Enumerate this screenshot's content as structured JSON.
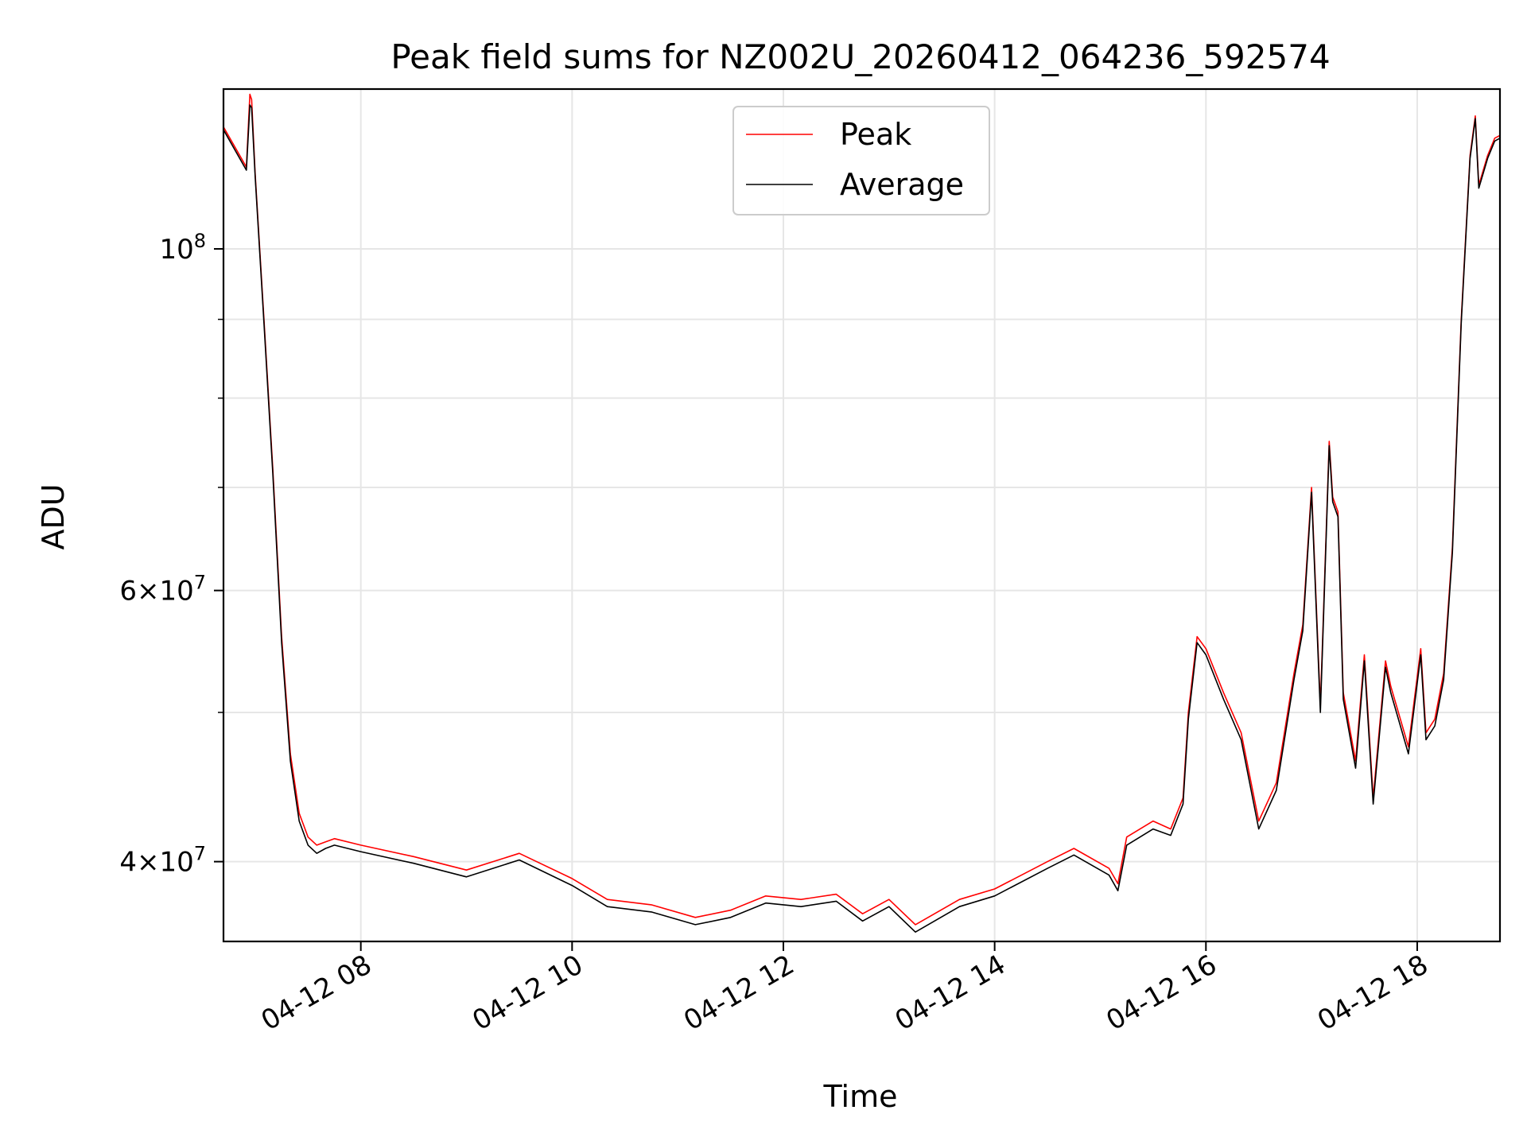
{
  "chart_data": {
    "type": "line",
    "title": "Peak field sums for NZ002U_20260412_064236_592574",
    "xlabel": "Time",
    "ylabel": "ADU",
    "yscale": "log",
    "ylim": [
      35500000,
      127000000
    ],
    "xlim": [
      "2026-04-12 06:42",
      "2026-04-12 18:47"
    ],
    "grid": true,
    "legend_position": "top-center",
    "x_ticks": [
      {
        "value": "2026-04-12 08:00",
        "label": "04-12 08"
      },
      {
        "value": "2026-04-12 10:00",
        "label": "04-12 10"
      },
      {
        "value": "2026-04-12 12:00",
        "label": "04-12 12"
      },
      {
        "value": "2026-04-12 14:00",
        "label": "04-12 14"
      },
      {
        "value": "2026-04-12 16:00",
        "label": "04-12 16"
      },
      {
        "value": "2026-04-12 18:00",
        "label": "04-12 18"
      }
    ],
    "y_major_ticks": [
      {
        "value": 40000000,
        "mantissa": "4",
        "exp": "7"
      },
      {
        "value": 60000000,
        "mantissa": "6",
        "exp": "7"
      },
      {
        "value": 100000000,
        "mantissa": "",
        "exp": "8"
      }
    ],
    "y_minor_ticks": [
      50000000,
      70000000,
      80000000,
      90000000
    ],
    "x": [
      "2026-04-12 06:42",
      "2026-04-12 06:55",
      "2026-04-12 06:57",
      "2026-04-12 06:58",
      "2026-04-12 07:00",
      "2026-04-12 07:05",
      "2026-04-12 07:10",
      "2026-04-12 07:15",
      "2026-04-12 07:20",
      "2026-04-12 07:25",
      "2026-04-12 07:30",
      "2026-04-12 07:35",
      "2026-04-12 07:40",
      "2026-04-12 07:45",
      "2026-04-12 08:00",
      "2026-04-12 08:30",
      "2026-04-12 09:00",
      "2026-04-12 09:30",
      "2026-04-12 10:00",
      "2026-04-12 10:20",
      "2026-04-12 10:45",
      "2026-04-12 11:10",
      "2026-04-12 11:30",
      "2026-04-12 11:50",
      "2026-04-12 12:10",
      "2026-04-12 12:30",
      "2026-04-12 12:45",
      "2026-04-12 13:00",
      "2026-04-12 13:15",
      "2026-04-12 13:40",
      "2026-04-12 14:00",
      "2026-04-12 14:30",
      "2026-04-12 14:45",
      "2026-04-12 15:05",
      "2026-04-12 15:10",
      "2026-04-12 15:15",
      "2026-04-12 15:30",
      "2026-04-12 15:40",
      "2026-04-12 15:47",
      "2026-04-12 15:50",
      "2026-04-12 15:55",
      "2026-04-12 16:00",
      "2026-04-12 16:10",
      "2026-04-12 16:20",
      "2026-04-12 16:30",
      "2026-04-12 16:40",
      "2026-04-12 16:50",
      "2026-04-12 16:55",
      "2026-04-12 17:00",
      "2026-04-12 17:05",
      "2026-04-12 17:10",
      "2026-04-12 17:12",
      "2026-04-12 17:15",
      "2026-04-12 17:18",
      "2026-04-12 17:25",
      "2026-04-12 17:30",
      "2026-04-12 17:35",
      "2026-04-12 17:42",
      "2026-04-12 17:45",
      "2026-04-12 17:55",
      "2026-04-12 18:02",
      "2026-04-12 18:05",
      "2026-04-12 18:10",
      "2026-04-12 18:15",
      "2026-04-12 18:20",
      "2026-04-12 18:25",
      "2026-04-12 18:30",
      "2026-04-12 18:33",
      "2026-04-12 18:35",
      "2026-04-12 18:40",
      "2026-04-12 18:44",
      "2026-04-12 18:47"
    ],
    "series": [
      {
        "name": "Peak",
        "color": "#ff0000",
        "values": [
          120000000,
          113000000,
          126000000,
          125000000,
          112000000,
          90000000,
          72000000,
          56000000,
          47000000,
          43000000,
          41500000,
          41000000,
          41200000,
          41400000,
          41000000,
          40300000,
          39500000,
          40500000,
          39000000,
          37800000,
          37500000,
          36800000,
          37200000,
          38000000,
          37800000,
          38100000,
          37000000,
          37800000,
          36400000,
          37800000,
          38400000,
          40000000,
          40800000,
          39600000,
          38700000,
          41500000,
          42500000,
          42000000,
          44000000,
          50000000,
          56000000,
          55000000,
          51500000,
          48500000,
          42500000,
          45000000,
          53000000,
          57000000,
          70000000,
          50500000,
          75000000,
          69000000,
          67500000,
          51500000,
          46500000,
          54500000,
          44000000,
          54000000,
          52000000,
          47500000,
          55000000,
          48500000,
          49500000,
          53000000,
          64000000,
          90000000,
          115000000,
          122000000,
          110000000,
          115000000,
          118000000,
          118500000
        ]
      },
      {
        "name": "Average",
        "color": "#000000",
        "values": [
          119500000,
          112500000,
          124000000,
          123500000,
          111500000,
          89500000,
          71500000,
          55500000,
          46500000,
          42500000,
          41000000,
          40500000,
          40800000,
          41000000,
          40600000,
          39900000,
          39100000,
          40100000,
          38600000,
          37400000,
          37100000,
          36400000,
          36800000,
          37600000,
          37400000,
          37700000,
          36600000,
          37400000,
          36000000,
          37400000,
          38000000,
          39600000,
          40400000,
          39200000,
          38300000,
          41000000,
          42000000,
          41600000,
          43600000,
          49500000,
          55500000,
          54500000,
          51000000,
          48000000,
          42000000,
          44500000,
          52500000,
          56500000,
          69500000,
          50000000,
          74500000,
          68500000,
          67000000,
          51000000,
          46000000,
          54000000,
          43600000,
          53500000,
          51500000,
          47000000,
          54500000,
          48000000,
          49000000,
          52500000,
          63500000,
          89500000,
          114500000,
          121500000,
          109500000,
          114500000,
          117500000,
          118000000
        ]
      }
    ]
  }
}
